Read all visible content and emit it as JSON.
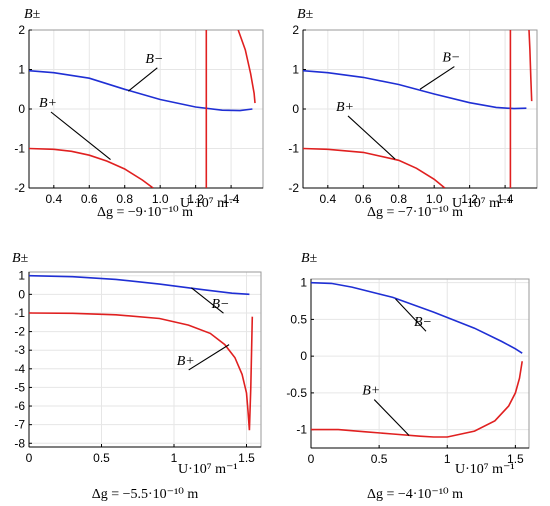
{
  "chart_data": [
    {
      "type": "line",
      "caption": "Δg = −9·10⁻¹⁰ m",
      "ylabel": "B±",
      "xlabel": "U·10⁷ m⁻¹",
      "xlim": [
        0.26,
        1.58
      ],
      "ylim": [
        -2,
        2
      ],
      "xticks": [
        "0.4",
        "0.6",
        "0.8",
        "1.0",
        "1.2",
        "1.4"
      ],
      "xtick_values": [
        0.4,
        0.6,
        0.8,
        1.0,
        1.2,
        1.4
      ],
      "yticks": [
        "-2",
        "-1",
        "0",
        "1",
        "2"
      ],
      "ytick_values": [
        -2,
        -1,
        0,
        1,
        2
      ],
      "series": [
        {
          "name": "B−",
          "color": "#1f2fd4",
          "x": [
            0.26,
            0.4,
            0.6,
            0.8,
            1.0,
            1.2,
            1.35,
            1.45,
            1.52
          ],
          "y": [
            0.97,
            0.92,
            0.78,
            0.5,
            0.24,
            0.05,
            -0.03,
            -0.04,
            0.0
          ]
        },
        {
          "name": "B+",
          "color": "#e02020",
          "x": [
            0.26,
            0.4,
            0.5,
            0.6,
            0.7,
            0.8,
            0.9,
            0.96
          ],
          "y": [
            -1.0,
            -1.02,
            -1.07,
            -1.17,
            -1.32,
            -1.52,
            -1.8,
            -2.0
          ]
        },
        {
          "name": "",
          "color": "#e02020",
          "x": [
            1.26,
            1.26
          ],
          "y": [
            -2,
            2
          ]
        },
        {
          "name": "",
          "color": "#e02020",
          "x": [
            1.44,
            1.48,
            1.51,
            1.53,
            1.535
          ],
          "y": [
            2.0,
            1.5,
            0.9,
            0.4,
            0.15
          ]
        }
      ],
      "annotations": [
        {
          "text": "B−",
          "series": 0,
          "at": [
            0.82,
            0.45
          ],
          "label_at": [
            0.95,
            1.12
          ]
        },
        {
          "text": "B+",
          "series": 1,
          "at": [
            0.72,
            -1.28
          ],
          "label_at": [
            0.35,
            0.0
          ]
        }
      ]
    },
    {
      "type": "line",
      "caption": "Δg = −7·10⁻¹⁰ m",
      "ylabel": "B±",
      "xlabel": "U·10⁷ m⁻¹",
      "xlim": [
        0.26,
        1.58
      ],
      "ylim": [
        -2,
        2
      ],
      "xticks": [
        "0.4",
        "0.6",
        "0.8",
        "1.0",
        "1.2",
        "1.4"
      ],
      "xtick_values": [
        0.4,
        0.6,
        0.8,
        1.0,
        1.2,
        1.4
      ],
      "yticks": [
        "-2",
        "-1",
        "0",
        "1",
        "2"
      ],
      "ytick_values": [
        -2,
        -1,
        0,
        1,
        2
      ],
      "series": [
        {
          "name": "B−",
          "color": "#1f2fd4",
          "x": [
            0.26,
            0.4,
            0.6,
            0.8,
            1.0,
            1.2,
            1.35,
            1.45,
            1.52
          ],
          "y": [
            0.97,
            0.92,
            0.8,
            0.62,
            0.38,
            0.16,
            0.04,
            0.01,
            0.02
          ]
        },
        {
          "name": "B+",
          "color": "#e02020",
          "x": [
            0.26,
            0.4,
            0.6,
            0.8,
            0.9,
            1.0,
            1.06
          ],
          "y": [
            -1.0,
            -1.02,
            -1.1,
            -1.3,
            -1.5,
            -1.78,
            -2.0
          ]
        },
        {
          "name": "",
          "color": "#e02020",
          "x": [
            1.43,
            1.43
          ],
          "y": [
            -2,
            2
          ]
        },
        {
          "name": "",
          "color": "#e02020",
          "x": [
            1.535,
            1.54,
            1.545,
            1.55
          ],
          "y": [
            2.0,
            1.5,
            0.8,
            0.2
          ]
        }
      ],
      "annotations": [
        {
          "text": "B−",
          "series": 0,
          "at": [
            0.92,
            0.5
          ],
          "label_at": [
            1.08,
            1.15
          ]
        },
        {
          "text": "B+",
          "series": 1,
          "at": [
            0.78,
            -1.27
          ],
          "label_at": [
            0.48,
            -0.1
          ]
        }
      ]
    },
    {
      "type": "line",
      "caption": "Δg = −5.5·10⁻¹⁰ m",
      "ylabel": "B±",
      "xlabel": "U·10⁷ m⁻¹",
      "xlim": [
        0,
        1.6
      ],
      "ylim": [
        -8.2,
        1.2
      ],
      "xticks": [
        "0",
        "0.5",
        "1",
        "1.5"
      ],
      "xtick_values": [
        0,
        0.5,
        1,
        1.5
      ],
      "yticks": [
        "-8",
        "-7",
        "-6",
        "-5",
        "-4",
        "-3",
        "-2",
        "-1",
        "0",
        "1"
      ],
      "ytick_values": [
        -8,
        -7,
        -6,
        -5,
        -4,
        -3,
        -2,
        -1,
        0,
        1
      ],
      "series": [
        {
          "name": "B−",
          "color": "#1f2fd4",
          "x": [
            0,
            0.3,
            0.6,
            0.9,
            1.2,
            1.4,
            1.52
          ],
          "y": [
            1.0,
            0.95,
            0.8,
            0.55,
            0.25,
            0.06,
            0.0
          ]
        },
        {
          "name": "B+",
          "color": "#e02020",
          "x": [
            0,
            0.3,
            0.6,
            0.9,
            1.1,
            1.25,
            1.35,
            1.42,
            1.47,
            1.5,
            1.51,
            1.52,
            1.53,
            1.54
          ],
          "y": [
            -1.0,
            -1.02,
            -1.1,
            -1.3,
            -1.65,
            -2.1,
            -2.7,
            -3.4,
            -4.3,
            -5.3,
            -6.2,
            -7.3,
            -5.0,
            -1.2
          ]
        }
      ],
      "annotations": [
        {
          "text": "B−",
          "series": 0,
          "at": [
            1.12,
            0.35
          ],
          "label_at": [
            1.3,
            -0.85
          ]
        },
        {
          "text": "B+",
          "series": 1,
          "at": [
            1.38,
            -2.7
          ],
          "label_at": [
            1.06,
            -3.9
          ]
        }
      ]
    },
    {
      "type": "line",
      "caption": "Δg = −4·10⁻¹⁰ m",
      "ylabel": "B±",
      "xlabel": "U·10⁷ m⁻¹",
      "xlim": [
        0,
        1.6
      ],
      "ylim": [
        -1.25,
        1.05
      ],
      "xticks": [
        "0",
        "0.5",
        "1",
        "1.5"
      ],
      "xtick_values": [
        0,
        0.5,
        1,
        1.5
      ],
      "yticks": [
        "-1",
        "-0.5",
        "0",
        "0.5",
        "1"
      ],
      "ytick_values": [
        -1,
        -0.5,
        0,
        0.5,
        1
      ],
      "series": [
        {
          "name": "B−",
          "color": "#1f2fd4",
          "x": [
            0,
            0.15,
            0.3,
            0.6,
            0.9,
            1.2,
            1.4,
            1.5,
            1.55
          ],
          "y": [
            1.0,
            0.99,
            0.94,
            0.8,
            0.6,
            0.38,
            0.2,
            0.1,
            0.04
          ]
        },
        {
          "name": "B+",
          "color": "#e02020",
          "x": [
            0,
            0.2,
            0.4,
            0.6,
            0.8,
            0.9,
            1.0,
            1.2,
            1.35,
            1.45,
            1.5,
            1.53,
            1.55
          ],
          "y": [
            -1.0,
            -1.0,
            -1.03,
            -1.06,
            -1.09,
            -1.1,
            -1.1,
            -1.02,
            -0.88,
            -0.68,
            -0.5,
            -0.3,
            -0.07
          ]
        }
      ],
      "annotations": [
        {
          "text": "B−",
          "series": 0,
          "at": [
            0.62,
            0.78
          ],
          "label_at": [
            0.8,
            0.38
          ]
        },
        {
          "text": "B+",
          "series": 1,
          "at": [
            0.72,
            -1.08
          ],
          "label_at": [
            0.42,
            -0.55
          ]
        }
      ]
    }
  ]
}
